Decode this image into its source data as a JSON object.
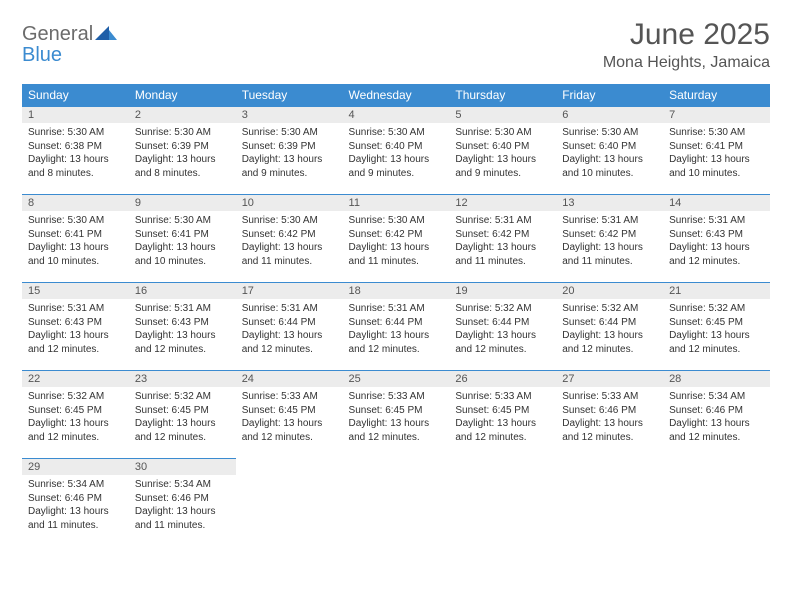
{
  "brand": {
    "word1": "General",
    "word2": "Blue"
  },
  "title": "June 2025",
  "location": "Mona Heights, Jamaica",
  "colors": {
    "header_bg": "#3b8bd0",
    "header_text": "#ffffff",
    "daynum_bg": "#ececec",
    "text": "#333333",
    "rule": "#3b8bd0",
    "logo_gray": "#6b6b6b",
    "logo_blue": "#3b8bd0"
  },
  "weekdays": [
    "Sunday",
    "Monday",
    "Tuesday",
    "Wednesday",
    "Thursday",
    "Friday",
    "Saturday"
  ],
  "weeks": [
    [
      {
        "n": "1",
        "sr": "Sunrise: 5:30 AM",
        "ss": "Sunset: 6:38 PM",
        "dl": "Daylight: 13 hours and 8 minutes."
      },
      {
        "n": "2",
        "sr": "Sunrise: 5:30 AM",
        "ss": "Sunset: 6:39 PM",
        "dl": "Daylight: 13 hours and 8 minutes."
      },
      {
        "n": "3",
        "sr": "Sunrise: 5:30 AM",
        "ss": "Sunset: 6:39 PM",
        "dl": "Daylight: 13 hours and 9 minutes."
      },
      {
        "n": "4",
        "sr": "Sunrise: 5:30 AM",
        "ss": "Sunset: 6:40 PM",
        "dl": "Daylight: 13 hours and 9 minutes."
      },
      {
        "n": "5",
        "sr": "Sunrise: 5:30 AM",
        "ss": "Sunset: 6:40 PM",
        "dl": "Daylight: 13 hours and 9 minutes."
      },
      {
        "n": "6",
        "sr": "Sunrise: 5:30 AM",
        "ss": "Sunset: 6:40 PM",
        "dl": "Daylight: 13 hours and 10 minutes."
      },
      {
        "n": "7",
        "sr": "Sunrise: 5:30 AM",
        "ss": "Sunset: 6:41 PM",
        "dl": "Daylight: 13 hours and 10 minutes."
      }
    ],
    [
      {
        "n": "8",
        "sr": "Sunrise: 5:30 AM",
        "ss": "Sunset: 6:41 PM",
        "dl": "Daylight: 13 hours and 10 minutes."
      },
      {
        "n": "9",
        "sr": "Sunrise: 5:30 AM",
        "ss": "Sunset: 6:41 PM",
        "dl": "Daylight: 13 hours and 10 minutes."
      },
      {
        "n": "10",
        "sr": "Sunrise: 5:30 AM",
        "ss": "Sunset: 6:42 PM",
        "dl": "Daylight: 13 hours and 11 minutes."
      },
      {
        "n": "11",
        "sr": "Sunrise: 5:30 AM",
        "ss": "Sunset: 6:42 PM",
        "dl": "Daylight: 13 hours and 11 minutes."
      },
      {
        "n": "12",
        "sr": "Sunrise: 5:31 AM",
        "ss": "Sunset: 6:42 PM",
        "dl": "Daylight: 13 hours and 11 minutes."
      },
      {
        "n": "13",
        "sr": "Sunrise: 5:31 AM",
        "ss": "Sunset: 6:42 PM",
        "dl": "Daylight: 13 hours and 11 minutes."
      },
      {
        "n": "14",
        "sr": "Sunrise: 5:31 AM",
        "ss": "Sunset: 6:43 PM",
        "dl": "Daylight: 13 hours and 12 minutes."
      }
    ],
    [
      {
        "n": "15",
        "sr": "Sunrise: 5:31 AM",
        "ss": "Sunset: 6:43 PM",
        "dl": "Daylight: 13 hours and 12 minutes."
      },
      {
        "n": "16",
        "sr": "Sunrise: 5:31 AM",
        "ss": "Sunset: 6:43 PM",
        "dl": "Daylight: 13 hours and 12 minutes."
      },
      {
        "n": "17",
        "sr": "Sunrise: 5:31 AM",
        "ss": "Sunset: 6:44 PM",
        "dl": "Daylight: 13 hours and 12 minutes."
      },
      {
        "n": "18",
        "sr": "Sunrise: 5:31 AM",
        "ss": "Sunset: 6:44 PM",
        "dl": "Daylight: 13 hours and 12 minutes."
      },
      {
        "n": "19",
        "sr": "Sunrise: 5:32 AM",
        "ss": "Sunset: 6:44 PM",
        "dl": "Daylight: 13 hours and 12 minutes."
      },
      {
        "n": "20",
        "sr": "Sunrise: 5:32 AM",
        "ss": "Sunset: 6:44 PM",
        "dl": "Daylight: 13 hours and 12 minutes."
      },
      {
        "n": "21",
        "sr": "Sunrise: 5:32 AM",
        "ss": "Sunset: 6:45 PM",
        "dl": "Daylight: 13 hours and 12 minutes."
      }
    ],
    [
      {
        "n": "22",
        "sr": "Sunrise: 5:32 AM",
        "ss": "Sunset: 6:45 PM",
        "dl": "Daylight: 13 hours and 12 minutes."
      },
      {
        "n": "23",
        "sr": "Sunrise: 5:32 AM",
        "ss": "Sunset: 6:45 PM",
        "dl": "Daylight: 13 hours and 12 minutes."
      },
      {
        "n": "24",
        "sr": "Sunrise: 5:33 AM",
        "ss": "Sunset: 6:45 PM",
        "dl": "Daylight: 13 hours and 12 minutes."
      },
      {
        "n": "25",
        "sr": "Sunrise: 5:33 AM",
        "ss": "Sunset: 6:45 PM",
        "dl": "Daylight: 13 hours and 12 minutes."
      },
      {
        "n": "26",
        "sr": "Sunrise: 5:33 AM",
        "ss": "Sunset: 6:45 PM",
        "dl": "Daylight: 13 hours and 12 minutes."
      },
      {
        "n": "27",
        "sr": "Sunrise: 5:33 AM",
        "ss": "Sunset: 6:46 PM",
        "dl": "Daylight: 13 hours and 12 minutes."
      },
      {
        "n": "28",
        "sr": "Sunrise: 5:34 AM",
        "ss": "Sunset: 6:46 PM",
        "dl": "Daylight: 13 hours and 12 minutes."
      }
    ],
    [
      {
        "n": "29",
        "sr": "Sunrise: 5:34 AM",
        "ss": "Sunset: 6:46 PM",
        "dl": "Daylight: 13 hours and 11 minutes."
      },
      {
        "n": "30",
        "sr": "Sunrise: 5:34 AM",
        "ss": "Sunset: 6:46 PM",
        "dl": "Daylight: 13 hours and 11 minutes."
      },
      null,
      null,
      null,
      null,
      null
    ]
  ]
}
